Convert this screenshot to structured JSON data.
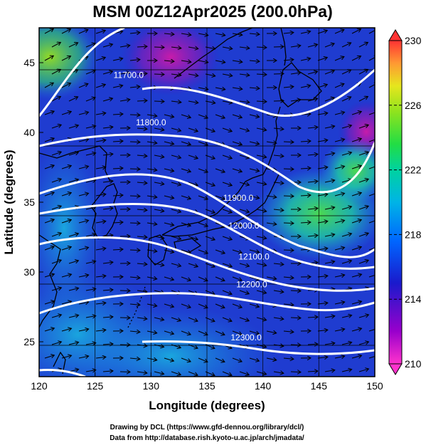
{
  "figure": {
    "title": "MSM 00Z12Apr2025 (200.0hPa)",
    "x_axis_label": "Longitude (degrees)",
    "y_axis_label": "Latitude  (degrees)",
    "x_ticks": [
      "120",
      "125",
      "130",
      "135",
      "140",
      "145",
      "150"
    ],
    "y_ticks": [
      "25",
      "30",
      "35",
      "40",
      "45"
    ],
    "colorbar_ticks": [
      "230",
      "226",
      "222",
      "218",
      "214",
      "210"
    ],
    "credit_line_1": "Drawing by DCL (https://www.gfd-dennou.org/library/dcl/)",
    "credit_line_2": "Data from http://database.rish.kyoto-u.ac.jp/arch/jmadata/"
  },
  "chart_data": {
    "type": "heatmap",
    "title": "MSM 00Z12Apr2025 (200.0hPa)",
    "xlabel": "Longitude (degrees)",
    "ylabel": "Latitude  (degrees)",
    "xlim": [
      120,
      150
    ],
    "ylim": [
      22.5,
      47.5
    ],
    "xticks": [
      120,
      125,
      130,
      135,
      140,
      145,
      150
    ],
    "yticks": [
      25,
      30,
      35,
      40,
      45
    ],
    "colorbar": {
      "min": 210,
      "max": 230,
      "ticks": [
        210,
        214,
        218,
        222,
        226,
        230
      ]
    },
    "grid": true,
    "contours": [
      {
        "label": "11700.0",
        "label_lon": 128.0,
        "label_lat": 43.9
      },
      {
        "label": "11800.0",
        "label_lon": 130.0,
        "label_lat": 40.5
      },
      {
        "label": "11900.0",
        "label_lon": 137.8,
        "label_lat": 35.1
      },
      {
        "label": "12000.0",
        "label_lon": 138.3,
        "label_lat": 33.1
      },
      {
        "label": "12100.0",
        "label_lon": 139.2,
        "label_lat": 30.9
      },
      {
        "label": "12200.0",
        "label_lon": 139.0,
        "label_lat": 28.9
      },
      {
        "label": "12300.0",
        "label_lon": 138.5,
        "label_lat": 25.1
      }
    ]
  }
}
